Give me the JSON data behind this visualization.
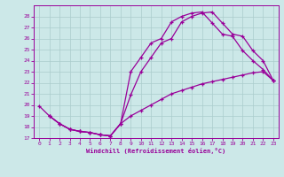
{
  "xlabel": "Windchill (Refroidissement éolien,°C)",
  "bg_color": "#cce8e8",
  "line_color": "#990099",
  "grid_color": "#aacccc",
  "xlim": [
    -0.5,
    23.5
  ],
  "ylim": [
    17,
    29
  ],
  "xticks": [
    0,
    1,
    2,
    3,
    4,
    5,
    6,
    7,
    8,
    9,
    10,
    11,
    12,
    13,
    14,
    15,
    16,
    17,
    18,
    19,
    20,
    21,
    22,
    23
  ],
  "yticks": [
    17,
    18,
    19,
    20,
    21,
    22,
    23,
    24,
    25,
    26,
    27,
    28
  ],
  "curve1_x": [
    0,
    1,
    2,
    3,
    4,
    5,
    6,
    7,
    8,
    9,
    10,
    11,
    12,
    13,
    14,
    15,
    16,
    17,
    18,
    19,
    20,
    21,
    22,
    23
  ],
  "curve1_y": [
    19.9,
    19.0,
    18.3,
    17.8,
    17.6,
    17.5,
    17.3,
    17.2,
    18.3,
    20.9,
    23.0,
    24.3,
    25.6,
    26.0,
    27.5,
    28.0,
    28.3,
    28.4,
    27.4,
    26.4,
    26.2,
    24.9,
    24.0,
    22.2
  ],
  "curve2_x": [
    1,
    2,
    3,
    4,
    5,
    6,
    7,
    8,
    9,
    10,
    11,
    12,
    13,
    14,
    15,
    16,
    17,
    18,
    19,
    20,
    21,
    22,
    23
  ],
  "curve2_y": [
    19.0,
    18.3,
    17.8,
    17.6,
    17.5,
    17.3,
    17.2,
    18.3,
    23.0,
    24.3,
    25.6,
    26.0,
    27.5,
    28.0,
    28.3,
    28.4,
    27.4,
    26.4,
    26.2,
    24.9,
    24.0,
    23.2,
    22.2
  ],
  "curve3_x": [
    1,
    2,
    3,
    4,
    5,
    6,
    7,
    8,
    9,
    10,
    11,
    12,
    13,
    14,
    15,
    16,
    17,
    18,
    19,
    20,
    21,
    22,
    23
  ],
  "curve3_y": [
    19.0,
    18.3,
    17.8,
    17.6,
    17.5,
    17.3,
    17.2,
    18.3,
    19.0,
    19.5,
    20.0,
    20.5,
    21.0,
    21.3,
    21.6,
    21.9,
    22.1,
    22.3,
    22.5,
    22.7,
    22.9,
    23.0,
    22.2
  ]
}
